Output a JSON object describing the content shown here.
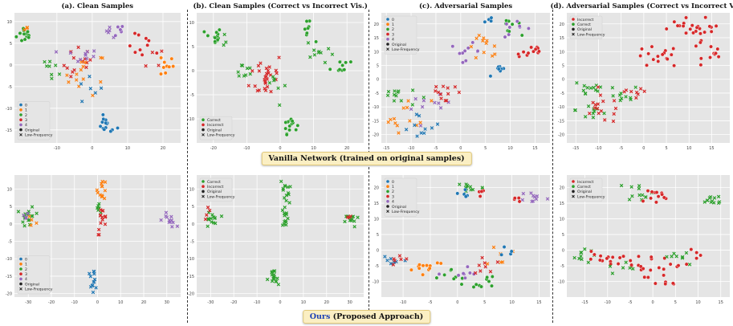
{
  "titles": {
    "a": "(a). Clean Samples",
    "b": "(b). Clean Samples (Correct vs Incorrect Vis.)",
    "c": "(c). Adversarial Samples",
    "d": "(d). Adversarial Samples (Correct vs Incorrect Vis.)"
  },
  "banners": {
    "top": "Vanilla Network (trained on original samples)",
    "bottom_ours": "Ours",
    "bottom_rest": " (Proposed Approach)"
  },
  "colors": {
    "0": "#1f77b4",
    "1": "#ff7f0e",
    "2": "#2ca02c",
    "3": "#d62728",
    "4": "#9467bd",
    "correct": "#2ca02c",
    "incorrect": "#d62728",
    "black": "#222222",
    "background": "#e5e5e5"
  },
  "legends": {
    "class": [
      "0",
      "1",
      "2",
      "3",
      "4",
      "Original",
      "Low-Frequency"
    ],
    "correctness_ci": [
      "Correct",
      "Incorrect",
      "Original",
      "Low-Frequency"
    ],
    "correctness_ic": [
      "Incorrect",
      "Correct",
      "Original",
      "Low-Frequency"
    ]
  },
  "chart_data": [
    {
      "id": "a-top",
      "type": "scatter",
      "xticks": [
        "-10",
        "0",
        "10",
        "20"
      ],
      "yticks": [
        "10",
        "5",
        "0",
        "-5",
        "-10",
        "-15"
      ],
      "xlim": [
        -22,
        25
      ],
      "ylim": [
        -18,
        12
      ],
      "legend": "class",
      "legend_pos": "lower-left",
      "clusters": [
        {
          "cls": "2",
          "cx": -19,
          "cy": 7,
          "sx": 1.2,
          "sy": 1,
          "n": 14,
          "mk": "o"
        },
        {
          "cls": "1",
          "cx": -19,
          "cy": 8,
          "sx": 0.5,
          "sy": 0.5,
          "n": 3,
          "mk": "x"
        },
        {
          "cls": "2",
          "cx": -11,
          "cy": 0,
          "sx": 1.5,
          "sy": 1.2,
          "n": 8,
          "mk": "x"
        },
        {
          "cls": "3",
          "cx": -3,
          "cy": 0,
          "sx": 2.5,
          "sy": 2,
          "n": 14,
          "mk": "x"
        },
        {
          "cls": "1",
          "cx": -2,
          "cy": -2,
          "sx": 3,
          "sy": 2.5,
          "n": 14,
          "mk": "x"
        },
        {
          "cls": "4",
          "cx": -4,
          "cy": 2,
          "sx": 3,
          "sy": 0.8,
          "n": 10,
          "mk": "x"
        },
        {
          "cls": "0",
          "cx": -1,
          "cy": -6,
          "sx": 2,
          "sy": 2,
          "n": 6,
          "mk": "x"
        },
        {
          "cls": "0",
          "cx": 4,
          "cy": -14,
          "sx": 1.5,
          "sy": 1,
          "n": 14,
          "mk": "o"
        },
        {
          "cls": "4",
          "cx": 7,
          "cy": 8,
          "sx": 1,
          "sy": 1,
          "n": 6,
          "mk": "o"
        },
        {
          "cls": "4",
          "cx": 5,
          "cy": 7,
          "sx": 1,
          "sy": 1,
          "n": 5,
          "mk": "x"
        },
        {
          "cls": "3",
          "cx": 15,
          "cy": 4,
          "sx": 2.5,
          "sy": 1.5,
          "n": 10,
          "mk": "o"
        },
        {
          "cls": "3",
          "cx": 18,
          "cy": 2,
          "sx": 1.5,
          "sy": 1.5,
          "n": 4,
          "mk": "x"
        },
        {
          "cls": "1",
          "cx": 21,
          "cy": 0,
          "sx": 1,
          "sy": 1.5,
          "n": 10,
          "mk": "o"
        }
      ]
    },
    {
      "id": "b-top",
      "type": "scatter",
      "xticks": [
        "-20",
        "-10",
        "0",
        "10",
        "20"
      ],
      "yticks": [
        "10",
        "5",
        "0",
        "-5",
        "-10"
      ],
      "xlim": [
        -25,
        25
      ],
      "ylim": [
        -15,
        12
      ],
      "legend": "correctness_ci",
      "legend_pos": "lower-left",
      "clusters": [
        {
          "cls": "correct",
          "cx": -20,
          "cy": 7,
          "sx": 1.2,
          "sy": 1,
          "n": 14,
          "mk": "o"
        },
        {
          "cls": "correct",
          "cx": -17,
          "cy": 7,
          "sx": 1,
          "sy": 1,
          "n": 3,
          "mk": "x"
        },
        {
          "cls": "correct",
          "cx": -11,
          "cy": 0,
          "sx": 1.5,
          "sy": 1,
          "n": 8,
          "mk": "x"
        },
        {
          "cls": "incorrect",
          "cx": -4,
          "cy": -1,
          "sx": 2.5,
          "sy": 2.5,
          "n": 28,
          "mk": "x"
        },
        {
          "cls": "correct",
          "cx": -2,
          "cy": -3,
          "sx": 2,
          "sy": 2,
          "n": 8,
          "mk": "x"
        },
        {
          "cls": "correct",
          "cx": 3,
          "cy": -11,
          "sx": 1,
          "sy": 1,
          "n": 14,
          "mk": "o"
        },
        {
          "cls": "correct",
          "cx": 8,
          "cy": 8,
          "sx": 1,
          "sy": 1,
          "n": 8,
          "mk": "o"
        },
        {
          "cls": "correct",
          "cx": 12,
          "cy": 4,
          "sx": 2,
          "sy": 1.5,
          "n": 10,
          "mk": "x"
        },
        {
          "cls": "correct",
          "cx": 18,
          "cy": 1,
          "sx": 1.5,
          "sy": 1,
          "n": 10,
          "mk": "o"
        }
      ]
    },
    {
      "id": "c-top",
      "type": "scatter",
      "xticks": [
        "-15",
        "-10",
        "-5",
        "0",
        "5",
        "10",
        "15"
      ],
      "yticks": [
        "20",
        "15",
        "10",
        "5",
        "0",
        "-5",
        "-10",
        "-15",
        "-20"
      ],
      "xlim": [
        -16,
        18
      ],
      "ylim": [
        -23,
        24
      ],
      "legend": "class",
      "legend_pos": "upper-left",
      "clusters": [
        {
          "cls": "2",
          "cx": -13,
          "cy": -6,
          "sx": 2,
          "sy": 2,
          "n": 12,
          "mk": "x"
        },
        {
          "cls": "1",
          "cx": -11,
          "cy": -13,
          "sx": 2.5,
          "sy": 3,
          "n": 14,
          "mk": "x"
        },
        {
          "cls": "0",
          "cx": -8,
          "cy": -17,
          "sx": 2,
          "sy": 2.5,
          "n": 10,
          "mk": "x"
        },
        {
          "cls": "4",
          "cx": -6,
          "cy": -10,
          "sx": 2,
          "sy": 2,
          "n": 10,
          "mk": "x"
        },
        {
          "cls": "3",
          "cx": -3,
          "cy": -4,
          "sx": 2,
          "sy": 3,
          "n": 12,
          "mk": "x"
        },
        {
          "cls": "4",
          "cx": 1,
          "cy": 10,
          "sx": 1.5,
          "sy": 1.5,
          "n": 10,
          "mk": "o"
        },
        {
          "cls": "1",
          "cx": 5,
          "cy": 12,
          "sx": 2,
          "sy": 2,
          "n": 12,
          "mk": "x"
        },
        {
          "cls": "0",
          "cx": 6,
          "cy": 21,
          "sx": 0.7,
          "sy": 1,
          "n": 4,
          "mk": "o"
        },
        {
          "cls": "2",
          "cx": 9,
          "cy": 21,
          "sx": 1.5,
          "sy": 2,
          "n": 10,
          "mk": "o"
        },
        {
          "cls": "4",
          "cx": 11,
          "cy": 18,
          "sx": 1.5,
          "sy": 1.5,
          "n": 8,
          "mk": "o"
        },
        {
          "cls": "0",
          "cx": 8,
          "cy": 3,
          "sx": 1,
          "sy": 1,
          "n": 8,
          "mk": "o"
        },
        {
          "cls": "3",
          "cx": 14,
          "cy": 10,
          "sx": 1.5,
          "sy": 1.5,
          "n": 12,
          "mk": "o"
        }
      ]
    },
    {
      "id": "d-top",
      "type": "scatter",
      "xticks": [
        "-15",
        "-10",
        "-5",
        "0",
        "5",
        "10",
        "15"
      ],
      "yticks": [
        "20",
        "15",
        "10",
        "5",
        "0",
        "-5",
        "-10",
        "-15",
        "-20"
      ],
      "xlim": [
        -17,
        19
      ],
      "ylim": [
        -23,
        24
      ],
      "legend": "correctness_ic",
      "legend_pos": "upper-left",
      "clusters": [
        {
          "cls": "correct",
          "cx": -12,
          "cy": -3,
          "sx": 2,
          "sy": 2,
          "n": 12,
          "mk": "x"
        },
        {
          "cls": "correct",
          "cx": -11,
          "cy": -11,
          "sx": 2,
          "sy": 2.5,
          "n": 10,
          "mk": "x"
        },
        {
          "cls": "incorrect",
          "cx": -9,
          "cy": -11,
          "sx": 2.5,
          "sy": 2.5,
          "n": 16,
          "mk": "x"
        },
        {
          "cls": "correct",
          "cx": -5,
          "cy": -6,
          "sx": 2,
          "sy": 2,
          "n": 10,
          "mk": "x"
        },
        {
          "cls": "incorrect",
          "cx": -3,
          "cy": -6,
          "sx": 2,
          "sy": 2,
          "n": 8,
          "mk": "x"
        },
        {
          "cls": "incorrect",
          "cx": 3,
          "cy": 8,
          "sx": 2.5,
          "sy": 2,
          "n": 16,
          "mk": "o"
        },
        {
          "cls": "incorrect",
          "cx": 9,
          "cy": 20,
          "sx": 1.5,
          "sy": 2,
          "n": 12,
          "mk": "o"
        },
        {
          "cls": "incorrect",
          "cx": 13,
          "cy": 15,
          "sx": 2,
          "sy": 3,
          "n": 16,
          "mk": "o"
        },
        {
          "cls": "incorrect",
          "cx": 16,
          "cy": 9,
          "sx": 1.5,
          "sy": 1.5,
          "n": 8,
          "mk": "o"
        }
      ]
    },
    {
      "id": "a-bot",
      "type": "scatter",
      "xticks": [
        "-30",
        "-20",
        "-10",
        "0",
        "10",
        "20",
        "30"
      ],
      "yticks": [
        "10",
        "5",
        "0",
        "-5",
        "-10",
        "-15",
        "-20"
      ],
      "xlim": [
        -36,
        36
      ],
      "ylim": [
        -21,
        14
      ],
      "legend": "class",
      "legend_pos": "lower-left",
      "clusters": [
        {
          "cls": "2",
          "cx": -30,
          "cy": 2,
          "sx": 1.5,
          "sy": 1.5,
          "n": 18,
          "mk": "x"
        },
        {
          "cls": "1",
          "cx": -28,
          "cy": 1,
          "sx": 1,
          "sy": 1,
          "n": 4,
          "mk": "x"
        },
        {
          "cls": "4",
          "cx": -31,
          "cy": 3,
          "sx": 1,
          "sy": 1,
          "n": 4,
          "mk": "x"
        },
        {
          "cls": "1",
          "cx": 2,
          "cy": 10,
          "sx": 1,
          "sy": 1.5,
          "n": 14,
          "mk": "x"
        },
        {
          "cls": "2",
          "cx": 1,
          "cy": 5,
          "sx": 1,
          "sy": 1,
          "n": 6,
          "mk": "x"
        },
        {
          "cls": "3",
          "cx": 2,
          "cy": 1,
          "sx": 1,
          "sy": 2,
          "n": 14,
          "mk": "x"
        },
        {
          "cls": "0",
          "cx": -2,
          "cy": -16,
          "sx": 1.2,
          "sy": 1.5,
          "n": 14,
          "mk": "x"
        },
        {
          "cls": "4",
          "cx": 31,
          "cy": 1,
          "sx": 1.5,
          "sy": 1,
          "n": 12,
          "mk": "x"
        }
      ]
    },
    {
      "id": "b-bot",
      "type": "scatter",
      "xticks": [
        "-30",
        "-20",
        "-10",
        "0",
        "10",
        "20",
        "30"
      ],
      "yticks": [
        "10",
        "5",
        "0",
        "-5",
        "-10",
        "-15",
        "-20"
      ],
      "xlim": [
        -36,
        36
      ],
      "ylim": [
        -21,
        14
      ],
      "legend": "correctness_ci",
      "legend_pos": "upper-left",
      "clusters": [
        {
          "cls": "correct",
          "cx": -30,
          "cy": 1,
          "sx": 1.5,
          "sy": 1.5,
          "n": 14,
          "mk": "x"
        },
        {
          "cls": "incorrect",
          "cx": -31,
          "cy": 3,
          "sx": 1,
          "sy": 1,
          "n": 4,
          "mk": "x"
        },
        {
          "cls": "correct",
          "cx": 2,
          "cy": 10,
          "sx": 1,
          "sy": 1.5,
          "n": 12,
          "mk": "x"
        },
        {
          "cls": "correct",
          "cx": 2,
          "cy": 2,
          "sx": 1,
          "sy": 2,
          "n": 14,
          "mk": "x"
        },
        {
          "cls": "correct",
          "cx": -3,
          "cy": -16,
          "sx": 1.2,
          "sy": 1.5,
          "n": 16,
          "mk": "x"
        },
        {
          "cls": "correct",
          "cx": 31,
          "cy": 1,
          "sx": 1.5,
          "sy": 1,
          "n": 12,
          "mk": "x"
        },
        {
          "cls": "incorrect",
          "cx": 30,
          "cy": 2,
          "sx": 1,
          "sy": 1,
          "n": 3,
          "mk": "x"
        }
      ]
    },
    {
      "id": "c-bot",
      "type": "scatter",
      "xticks": [
        "-10",
        "-5",
        "0",
        "5",
        "10",
        "15"
      ],
      "yticks": [
        "20",
        "15",
        "10",
        "5",
        "0",
        "-5",
        "-10"
      ],
      "xlim": [
        -14,
        17
      ],
      "ylim": [
        -15,
        24
      ],
      "legend": "class",
      "legend_pos": "upper-left",
      "clusters": [
        {
          "cls": "2",
          "cx": 2,
          "cy": 20,
          "sx": 1.5,
          "sy": 1.2,
          "n": 12,
          "mk": "x"
        },
        {
          "cls": "0",
          "cx": 1,
          "cy": 18,
          "sx": 1,
          "sy": 1,
          "n": 5,
          "mk": "o"
        },
        {
          "cls": "3",
          "cx": 5,
          "cy": 18,
          "sx": 1,
          "sy": 1,
          "n": 4,
          "mk": "o"
        },
        {
          "cls": "4",
          "cx": 14,
          "cy": 17,
          "sx": 1.2,
          "sy": 1,
          "n": 10,
          "mk": "x"
        },
        {
          "cls": "3",
          "cx": 11,
          "cy": 16,
          "sx": 0.8,
          "sy": 0.8,
          "n": 4,
          "mk": "o"
        },
        {
          "cls": "0",
          "cx": -12,
          "cy": -3,
          "sx": 1.5,
          "sy": 1,
          "n": 8,
          "mk": "x"
        },
        {
          "cls": "1",
          "cx": -6,
          "cy": -5,
          "sx": 2,
          "sy": 1,
          "n": 12,
          "mk": "o"
        },
        {
          "cls": "3",
          "cx": -10,
          "cy": -3,
          "sx": 1.5,
          "sy": 1,
          "n": 6,
          "mk": "x"
        },
        {
          "cls": "2",
          "cx": -1,
          "cy": -9,
          "sx": 1.5,
          "sy": 1.5,
          "n": 8,
          "mk": "o"
        },
        {
          "cls": "4",
          "cx": 1,
          "cy": -8,
          "sx": 1.5,
          "sy": 1.5,
          "n": 8,
          "mk": "o"
        },
        {
          "cls": "2",
          "cx": 4,
          "cy": -10,
          "sx": 1.5,
          "sy": 1.5,
          "n": 10,
          "mk": "o"
        },
        {
          "cls": "3",
          "cx": 5,
          "cy": -4,
          "sx": 1,
          "sy": 2,
          "n": 8,
          "mk": "x"
        },
        {
          "cls": "1",
          "cx": 8,
          "cy": -2,
          "sx": 1,
          "sy": 2,
          "n": 6,
          "mk": "x"
        },
        {
          "cls": "0",
          "cx": 10,
          "cy": 0,
          "sx": 1,
          "sy": 1,
          "n": 4,
          "mk": "o"
        }
      ]
    },
    {
      "id": "d-bot",
      "type": "scatter",
      "xticks": [
        "-15",
        "-10",
        "-5",
        "0",
        "5",
        "10",
        "15"
      ],
      "yticks": [
        "20",
        "15",
        "10",
        "5",
        "0",
        "-5",
        "-10"
      ],
      "xlim": [
        -19,
        17
      ],
      "ylim": [
        -15,
        24
      ],
      "legend": "correctness_ic",
      "legend_pos": "upper-left",
      "clusters": [
        {
          "cls": "correct",
          "cx": -3,
          "cy": 19,
          "sx": 1.5,
          "sy": 1.5,
          "n": 12,
          "mk": "x"
        },
        {
          "cls": "incorrect",
          "cx": 0,
          "cy": 17,
          "sx": 2,
          "sy": 1.5,
          "n": 12,
          "mk": "o"
        },
        {
          "cls": "correct",
          "cx": 13,
          "cy": 16,
          "sx": 1.5,
          "sy": 1,
          "n": 12,
          "mk": "x"
        },
        {
          "cls": "correct",
          "cx": -16,
          "cy": -2,
          "sx": 1.5,
          "sy": 1,
          "n": 10,
          "mk": "x"
        },
        {
          "cls": "incorrect",
          "cx": -12,
          "cy": -3,
          "sx": 2,
          "sy": 1.5,
          "n": 12,
          "mk": "o"
        },
        {
          "cls": "incorrect",
          "cx": -4,
          "cy": -5,
          "sx": 2,
          "sy": 2,
          "n": 14,
          "mk": "o"
        },
        {
          "cls": "incorrect",
          "cx": 3,
          "cy": -7,
          "sx": 2,
          "sy": 2.5,
          "n": 14,
          "mk": "o"
        },
        {
          "cls": "correct",
          "cx": 6,
          "cy": -2,
          "sx": 1.5,
          "sy": 2,
          "n": 8,
          "mk": "x"
        },
        {
          "cls": "correct",
          "cx": -7,
          "cy": -6,
          "sx": 1.5,
          "sy": 1.5,
          "n": 6,
          "mk": "x"
        },
        {
          "cls": "incorrect",
          "cx": 9,
          "cy": -1,
          "sx": 0.8,
          "sy": 1,
          "n": 4,
          "mk": "o"
        }
      ]
    }
  ]
}
